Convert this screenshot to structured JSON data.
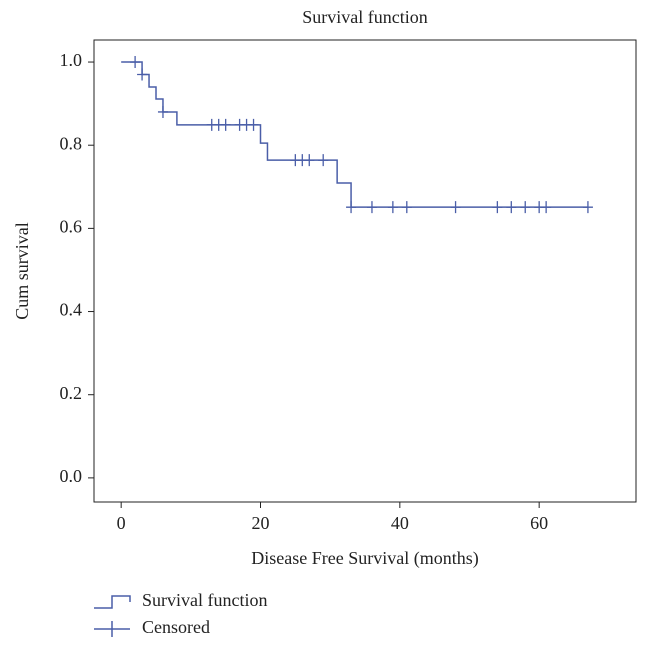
{
  "chart_data": {
    "type": "survival",
    "title": "Survival function",
    "x_label": "Disease Free Survival (months)",
    "y_label": "Cum survival",
    "xlim": [
      -3.9,
      73.9
    ],
    "ylim": [
      -0.058,
      1.053
    ],
    "xticks": [
      0,
      20,
      40,
      60
    ],
    "yticks": [
      {
        "value": 0,
        "label": "0.0"
      },
      0.2,
      0.4,
      0.6,
      0.8,
      {
        "value": 1,
        "label": "1.0"
      }
    ],
    "legend": "bottom-left",
    "series": [
      {
        "name": "Survival function",
        "kind": "step",
        "color": "#4a5ea8",
        "x": [
          0,
          3,
          4,
          5,
          6,
          8,
          20,
          21,
          31,
          33,
          67
        ],
        "values": [
          1,
          0.97,
          0.94,
          0.911,
          0.88,
          0.849,
          0.805,
          0.764,
          0.709,
          0.651,
          0.651
        ]
      },
      {
        "name": "Censored",
        "kind": "censor",
        "color": "#4a5ea8",
        "x": [
          2,
          3,
          6,
          13,
          14,
          15,
          17,
          18,
          19,
          25,
          26,
          27,
          29,
          33,
          36,
          39,
          41,
          48,
          54,
          56,
          58,
          60,
          61,
          67
        ],
        "values": [
          1,
          0.97,
          0.88,
          0.849,
          0.849,
          0.849,
          0.849,
          0.849,
          0.849,
          0.764,
          0.764,
          0.764,
          0.764,
          0.651,
          0.651,
          0.651,
          0.651,
          0.651,
          0.651,
          0.651,
          0.651,
          0.651,
          0.651,
          0.651
        ]
      }
    ]
  }
}
